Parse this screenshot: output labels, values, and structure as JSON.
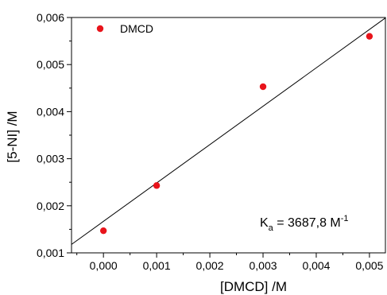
{
  "chart_data": {
    "type": "scatter",
    "xlabel": "[DMCD] /M",
    "ylabel": "[5-NI] /M",
    "xlim": [
      -0.0006,
      0.0053
    ],
    "ylim": [
      0.001,
      0.006
    ],
    "x_ticks": [
      "0,000",
      "0,001",
      "0,002",
      "0,003",
      "0,004",
      "0,005"
    ],
    "x_tick_values": [
      0,
      0.001,
      0.002,
      0.003,
      0.004,
      0.005
    ],
    "y_ticks": [
      "0,001",
      "0,002",
      "0,003",
      "0,004",
      "0,005",
      "0,006"
    ],
    "y_tick_values": [
      0.001,
      0.002,
      0.003,
      0.004,
      0.005,
      0.006
    ],
    "series": [
      {
        "name": "DMCD",
        "color": "#e8141b",
        "x": [
          0.0,
          0.001,
          0.003,
          0.005
        ],
        "y": [
          0.00147,
          0.00243,
          0.00453,
          0.0056
        ]
      }
    ],
    "fit_line": {
      "x": [
        -0.0006,
        0.0053
      ],
      "y": [
        0.00118,
        0.00599
      ],
      "color": "#000000"
    },
    "legend": {
      "position": "top-left"
    },
    "annotation": {
      "main": "K",
      "sub": "a",
      "value": " = 3687,8 M",
      "sup": "-1"
    }
  }
}
